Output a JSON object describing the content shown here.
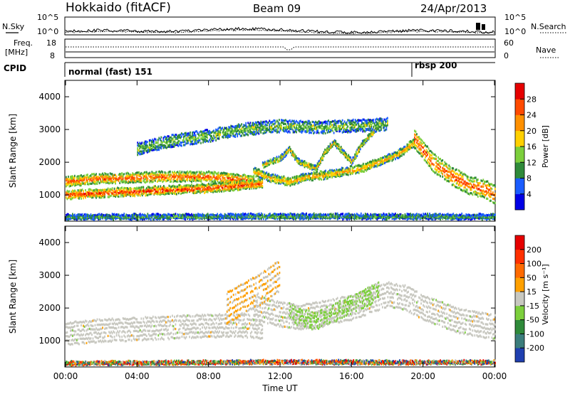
{
  "header": {
    "station": "Hokkaido (fitACF)",
    "beam": "Beam 09",
    "date": "24/Apr/2013"
  },
  "noise_panel": {
    "left_label": "N.Sky",
    "right_label": "N.Search",
    "ticks": [
      "10^5",
      "10^0"
    ]
  },
  "freq_panel": {
    "left_label_line1": "Freq.",
    "left_label_line2": "[MHz]",
    "left_ticks": [
      "18",
      "8"
    ],
    "right_label": "Nave",
    "right_ticks": [
      "60",
      "0"
    ]
  },
  "cpid_panel": {
    "label": "CPID",
    "modes": [
      {
        "name": "normal (fast) 151",
        "start_hour": 0
      },
      {
        "name": "rbsp 200",
        "start_hour": 19.5
      }
    ]
  },
  "chart_data": [
    {
      "type": "heatmap",
      "name": "power",
      "ylabel": "Slant Range [km]",
      "ylim": [
        200,
        4500
      ],
      "yticks": [
        "1000",
        "2000",
        "3000",
        "4000"
      ],
      "xlim_hours": [
        0,
        24
      ],
      "colorbar": {
        "label": "Power [dB]",
        "ticks": [
          "4",
          "8",
          "12",
          "16",
          "20",
          "24",
          "28"
        ],
        "colors": [
          "#0000e6",
          "#1a5cff",
          "#2f8a3a",
          "#7ccf3c",
          "#ffd000",
          "#ff9000",
          "#ff4a00",
          "#e60000"
        ]
      },
      "traces": [
        {
          "x": [
            0,
            1,
            2,
            3,
            4,
            5,
            6,
            7,
            8,
            9,
            10,
            10.5
          ],
          "y": [
            1400,
            1450,
            1500,
            1500,
            1520,
            1550,
            1550,
            1550,
            1550,
            1500,
            1450,
            1400
          ],
          "band": 260,
          "level": 0.85
        },
        {
          "x": [
            0,
            2,
            4,
            6,
            8,
            10,
            11
          ],
          "y": [
            1000,
            1050,
            1100,
            1150,
            1200,
            1300,
            1350
          ],
          "band": 220,
          "level": 0.9
        },
        {
          "x": [
            10.5,
            11.5,
            12.5,
            13.5,
            14.5,
            15.5,
            16.5,
            17.5,
            18.5,
            19.5
          ],
          "y": [
            1700,
            1500,
            1400,
            1550,
            1600,
            1700,
            1800,
            2000,
            2200,
            2600
          ],
          "band": 200,
          "level": 0.7
        },
        {
          "x": [
            11,
            12,
            12.5,
            13,
            14,
            14.5,
            15,
            16,
            16.5,
            17,
            17.5
          ],
          "y": [
            1900,
            2100,
            2400,
            2000,
            1800,
            2300,
            2600,
            2000,
            2500,
            2800,
            3100
          ],
          "band": 130,
          "level": 0.65
        },
        {
          "x": [
            19.5,
            20.5,
            21.5,
            22.5,
            23.5,
            24
          ],
          "y": [
            2700,
            2000,
            1600,
            1300,
            1150,
            1000
          ],
          "band": 500,
          "level": 0.85
        },
        {
          "x": [
            4,
            6,
            8,
            10,
            12,
            14,
            16,
            18
          ],
          "y": [
            2400,
            2650,
            2800,
            3000,
            3100,
            3050,
            3100,
            3150
          ],
          "band": 320,
          "level": 0.45
        },
        {
          "x": [
            0,
            6,
            12,
            18,
            24
          ],
          "y": [
            320,
            330,
            340,
            330,
            330
          ],
          "band": 120,
          "level": 0.4
        }
      ]
    },
    {
      "type": "heatmap",
      "name": "velocity",
      "ylabel": "Slant Range [km]",
      "xlabel": "Time UT",
      "ylim": [
        200,
        4500
      ],
      "yticks": [
        "1000",
        "2000",
        "3000",
        "4000"
      ],
      "xticks": [
        "00:00",
        "04:00",
        "08:00",
        "12:00",
        "16:00",
        "20:00",
        "00:00"
      ],
      "xlim_hours": [
        0,
        24
      ],
      "colorbar": {
        "label": "Velocity [m s⁻¹]",
        "ticks": [
          "200",
          "100",
          "50",
          "15",
          "-15",
          "-50",
          "-100",
          "-200"
        ],
        "colors": [
          "#1f3fb0",
          "#3b7d7c",
          "#2f8a3a",
          "#7ccf3c",
          "#c8c8c0",
          "#ffa000",
          "#ff6a00",
          "#ff3000",
          "#e60000"
        ]
      },
      "traces": [
        {
          "x": [
            0,
            2,
            4,
            6,
            8,
            10,
            11
          ],
          "y": [
            1200,
            1300,
            1350,
            1400,
            1450,
            1450,
            1400
          ],
          "band": 650,
          "level": "gray"
        },
        {
          "x": [
            10.5,
            12,
            13,
            14,
            15,
            16,
            17,
            18,
            19,
            20,
            21,
            22,
            23,
            24
          ],
          "y": [
            2000,
            1800,
            1700,
            1800,
            1900,
            2000,
            2200,
            2400,
            2300,
            2000,
            1800,
            1600,
            1500,
            1400
          ],
          "band": 700,
          "level": "gray"
        },
        {
          "x": [
            9,
            10,
            11,
            12
          ],
          "y": [
            2000,
            2300,
            2600,
            3000
          ],
          "band": 900,
          "level": "orange"
        },
        {
          "x": [
            12.5,
            13,
            14,
            16,
            17.5
          ],
          "y": [
            1900,
            1700,
            1600,
            2100,
            2500
          ],
          "band": 500,
          "level": "green"
        },
        {
          "x": [
            0,
            6,
            12,
            18,
            24
          ],
          "y": [
            300,
            320,
            340,
            330,
            330
          ],
          "band": 80,
          "level": "mixed"
        }
      ]
    }
  ]
}
